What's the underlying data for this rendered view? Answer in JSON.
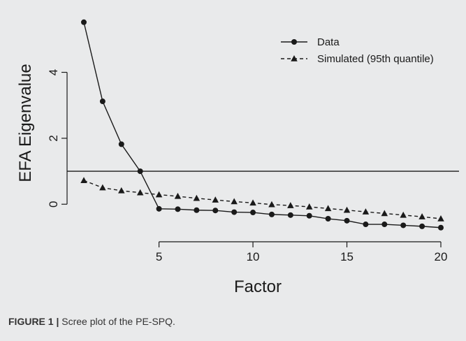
{
  "chart_data": {
    "type": "line",
    "xlabel": "Factor",
    "ylabel": "EFA Eigenvalue",
    "xlim": [
      1,
      20
    ],
    "ylim": [
      -0.8,
      5.6
    ],
    "x_ticks": [
      5,
      10,
      15,
      20
    ],
    "y_ticks": [
      0,
      2,
      4
    ],
    "reference_line": {
      "y": 1
    },
    "legend_position": "top-right",
    "grid": false,
    "series": [
      {
        "name": "Data",
        "marker": "circle",
        "line": "solid",
        "x": [
          1,
          2,
          3,
          4,
          5,
          6,
          7,
          8,
          9,
          10,
          11,
          12,
          13,
          14,
          15,
          16,
          17,
          18,
          19,
          20
        ],
        "values": [
          5.52,
          3.12,
          1.82,
          1.0,
          -0.14,
          -0.15,
          -0.18,
          -0.19,
          -0.24,
          -0.25,
          -0.31,
          -0.33,
          -0.35,
          -0.44,
          -0.5,
          -0.61,
          -0.61,
          -0.64,
          -0.67,
          -0.71
        ]
      },
      {
        "name": "Simulated (95th quantile)",
        "marker": "triangle",
        "line": "dashed",
        "x": [
          1,
          2,
          3,
          4,
          5,
          6,
          7,
          8,
          9,
          10,
          11,
          12,
          13,
          14,
          15,
          16,
          17,
          18,
          19,
          20
        ],
        "values": [
          0.72,
          0.5,
          0.41,
          0.35,
          0.29,
          0.24,
          0.18,
          0.13,
          0.08,
          0.04,
          -0.01,
          -0.04,
          -0.08,
          -0.13,
          -0.18,
          -0.23,
          -0.28,
          -0.33,
          -0.38,
          -0.44
        ]
      }
    ]
  },
  "caption": {
    "label": "FIGURE 1 |",
    "text": "Scree plot of the PE-SPQ."
  },
  "colors": {
    "background": "#e9eaeb",
    "ink": "#1a1a1a"
  }
}
